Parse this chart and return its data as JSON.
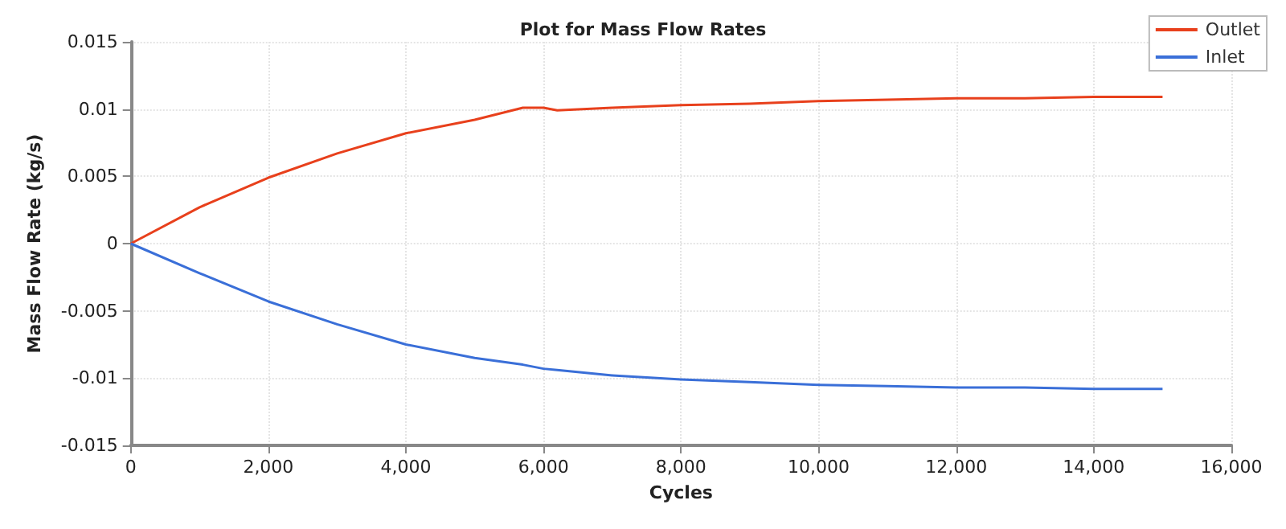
{
  "chart_data": {
    "type": "line",
    "title": "Plot for Mass Flow Rates",
    "xlabel": "Cycles",
    "ylabel": "Mass Flow Rate (kg/s)",
    "x": [
      0,
      1000,
      2000,
      3000,
      4000,
      5000,
      5700,
      6000,
      6200,
      7000,
      8000,
      9000,
      10000,
      11000,
      12000,
      13000,
      14000,
      15000
    ],
    "series": [
      {
        "name": "Outlet",
        "color": "#e8401c",
        "values": [
          0,
          0.0027,
          0.0049,
          0.0067,
          0.0082,
          0.0092,
          0.0101,
          0.0101,
          0.0099,
          0.0101,
          0.0103,
          0.0104,
          0.0106,
          0.0107,
          0.0108,
          0.0108,
          0.0109,
          0.0109
        ]
      },
      {
        "name": "Inlet",
        "color": "#3a6fd8",
        "values": [
          0,
          -0.0022,
          -0.0043,
          -0.006,
          -0.0075,
          -0.0085,
          -0.009,
          -0.0093,
          -0.0094,
          -0.0098,
          -0.0101,
          -0.0103,
          -0.0105,
          -0.0106,
          -0.0107,
          -0.0107,
          -0.0108,
          -0.0108
        ]
      }
    ],
    "xlim": [
      0,
      16000
    ],
    "xticks": [
      {
        "value": 0,
        "label": "0"
      },
      {
        "value": 2000,
        "label": "2,000"
      },
      {
        "value": 4000,
        "label": "4,000"
      },
      {
        "value": 6000,
        "label": "6,000"
      },
      {
        "value": 8000,
        "label": "8,000"
      },
      {
        "value": 10000,
        "label": "10,000"
      },
      {
        "value": 12000,
        "label": "12,000"
      },
      {
        "value": 14000,
        "label": "14,000"
      },
      {
        "value": 16000,
        "label": "16,000"
      }
    ],
    "ylim": [
      -0.015,
      0.015
    ],
    "yticks": [
      -0.015,
      -0.01,
      -0.005,
      0,
      0.005,
      0.01,
      0.015
    ],
    "grid": true,
    "legend": "top right",
    "marker": "none",
    "line_style": "solid"
  }
}
